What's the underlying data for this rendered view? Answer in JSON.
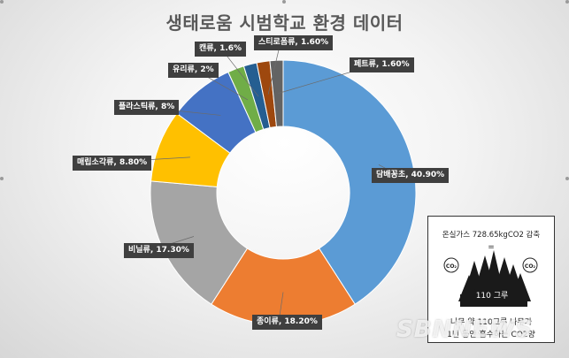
{
  "chart_data": {
    "type": "pie",
    "title": "생태로움 시범학교 환경 데이터",
    "slices": [
      {
        "name": "담배꽁초",
        "value": 40.9,
        "label": "담배꽁초, 40.90%",
        "color": "#5B9BD5"
      },
      {
        "name": "종이류",
        "value": 18.2,
        "label": "종이류, 18.20%",
        "color": "#ED7D31"
      },
      {
        "name": "비닐류",
        "value": 17.3,
        "label": "비닐류, 17.30%",
        "color": "#A5A5A5"
      },
      {
        "name": "매립소각류",
        "value": 8.8,
        "label": "매립소각류, 8.80%",
        "color": "#FFC000"
      },
      {
        "name": "플라스틱류",
        "value": 8,
        "label": "플라스틱류, 8%",
        "color": "#4472C4"
      },
      {
        "name": "유리류",
        "value": 2,
        "label": "유리류, 2%",
        "color": "#70AD47"
      },
      {
        "name": "캔류",
        "value": 1.6,
        "label": "캔류, 1.6%",
        "color": "#255E91"
      },
      {
        "name": "스티로폼류",
        "value": 1.6,
        "label": "스티로폼류, 1.60%",
        "color": "#9E480E"
      },
      {
        "name": "페트류",
        "value": 1.6,
        "label": "페트류, 1.60%",
        "color": "#636363"
      }
    ]
  },
  "info_box": {
    "top_text": "온실가스 728.65kgCO2 감축",
    "equals": "=",
    "co2_badge": "CO₂",
    "tree_count": "110 그루",
    "bottom_line1": "나무 약 110그루 나무가",
    "bottom_line2": "1년 동안 흡수하는 CO2양"
  },
  "watermark": "SBNNEWS"
}
